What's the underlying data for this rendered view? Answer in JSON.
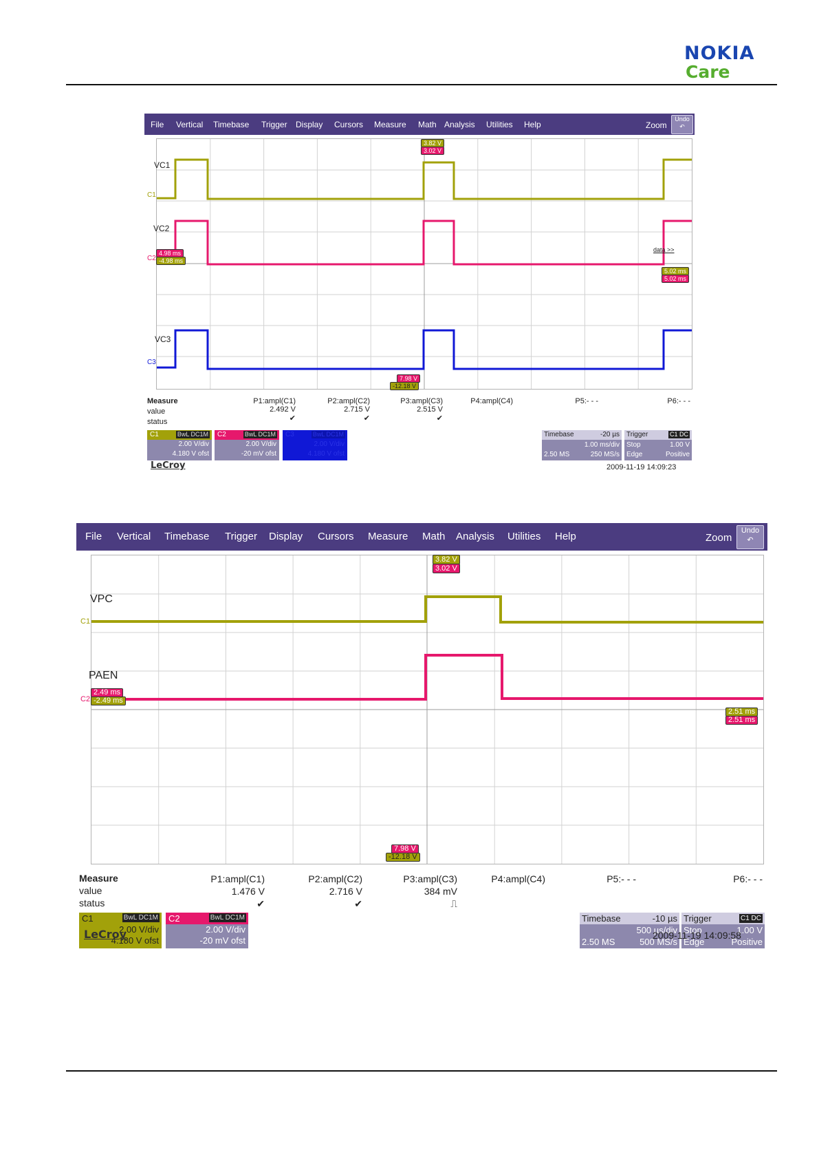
{
  "brand": {
    "name": "NOKIA",
    "sub": "Care"
  },
  "colors": {
    "c1": "#a2a10a",
    "c2": "#e6186c",
    "c3": "#1018d6",
    "menubar": "#4b3c80"
  },
  "scope1": {
    "menu": [
      "File",
      "Vertical",
      "Timebase",
      "Trigger",
      "Display",
      "Cursors",
      "Measure",
      "Math",
      "Analysis",
      "Utilities",
      "Help"
    ],
    "zoom": "Zoom",
    "undo": "Undo",
    "labels": {
      "vc1": "VC1",
      "vc2": "VC2",
      "vc3": "VC3",
      "c1": "C1",
      "c2": "C2",
      "c3": "C3",
      "data": "data >>"
    },
    "markers": {
      "top1": "3.82 V",
      "top2": "3.02 V",
      "left1": "4.98 ms",
      "left2": "-4.98 ms",
      "right1": "5.02 ms",
      "right2": "5.02 ms",
      "bot1": "7.98 V",
      "bot2": "-12.18 V"
    },
    "measure": {
      "title": "Measure",
      "value_label": "value",
      "status_label": "status",
      "cols": [
        {
          "name": "P1:ampl(C1)",
          "value": "2.492 V",
          "status": "✔"
        },
        {
          "name": "P2:ampl(C2)",
          "value": "2.715 V",
          "status": "✔"
        },
        {
          "name": "P3:ampl(C3)",
          "value": "2.515 V",
          "status": "✔"
        },
        {
          "name": "P4:ampl(C4)",
          "value": "",
          "status": ""
        },
        {
          "name": "P5:- - -",
          "value": "",
          "status": ""
        },
        {
          "name": "P6:- - -",
          "value": "",
          "status": ""
        }
      ]
    },
    "channels": [
      {
        "name": "C1",
        "tag": "BwL DC1M",
        "vdiv": "2.00 V/div",
        "ofst": "4.180 V ofst"
      },
      {
        "name": "C2",
        "tag": "BwL DC1M",
        "vdiv": "2.00 V/div",
        "ofst": "-20 mV ofst"
      },
      {
        "name": "C3",
        "tag": "BwL DC1M",
        "vdiv": "2.00 V/div",
        "ofst": "4.180 V ofst"
      }
    ],
    "timebase": {
      "title": "Timebase",
      "delay": "-20 µs",
      "div": "1.00 ms/div",
      "samples": "2.50 MS",
      "rate": "250 MS/s"
    },
    "trigger": {
      "title": "Trigger",
      "tag": "C1 DC",
      "mode": "Stop",
      "level": "1.00 V",
      "type": "Edge",
      "slope": "Positive"
    },
    "brand": "LeCroy",
    "timestamp": "2009-11-19 14:09:23"
  },
  "scope2": {
    "menu": [
      "File",
      "Vertical",
      "Timebase",
      "Trigger",
      "Display",
      "Cursors",
      "Measure",
      "Math",
      "Analysis",
      "Utilities",
      "Help"
    ],
    "zoom": "Zoom",
    "undo": "Undo",
    "labels": {
      "vpc": "VPC",
      "paen": "PAEN",
      "c1": "C1",
      "c2": "C2"
    },
    "markers": {
      "top1": "3.82 V",
      "top2": "3.02 V",
      "left1": "2.49 ms",
      "left2": "-2.49 ms",
      "right1": "2.51 ms",
      "right2": "2.51 ms",
      "bot1": "7.98 V",
      "bot2": "-12.18 V"
    },
    "measure": {
      "title": "Measure",
      "value_label": "value",
      "status_label": "status",
      "cols": [
        {
          "name": "P1:ampl(C1)",
          "value": "1.476 V",
          "status": "✔"
        },
        {
          "name": "P2:ampl(C2)",
          "value": "2.716 V",
          "status": "✔"
        },
        {
          "name": "P3:ampl(C3)",
          "value": "384 mV",
          "status": "⎍"
        },
        {
          "name": "P4:ampl(C4)",
          "value": "",
          "status": ""
        },
        {
          "name": "P5:- - -",
          "value": "",
          "status": ""
        },
        {
          "name": "P6:- - -",
          "value": "",
          "status": ""
        }
      ]
    },
    "channels": [
      {
        "name": "C1",
        "tag": "BwL DC1M",
        "vdiv": "2.00 V/div",
        "ofst": "4.180 V ofst"
      },
      {
        "name": "C2",
        "tag": "BwL DC1M",
        "vdiv": "2.00 V/div",
        "ofst": "-20 mV ofst"
      }
    ],
    "timebase": {
      "title": "Timebase",
      "delay": "-10 µs",
      "div": "500 µs/div",
      "samples": "2.50 MS",
      "rate": "500 MS/s"
    },
    "trigger": {
      "title": "Trigger",
      "tag": "C1 DC",
      "mode": "Stop",
      "level": "1.00 V",
      "type": "Edge",
      "slope": "Positive"
    },
    "brand": "LeCroy",
    "timestamp": "2009-11-19 14:09:58"
  }
}
